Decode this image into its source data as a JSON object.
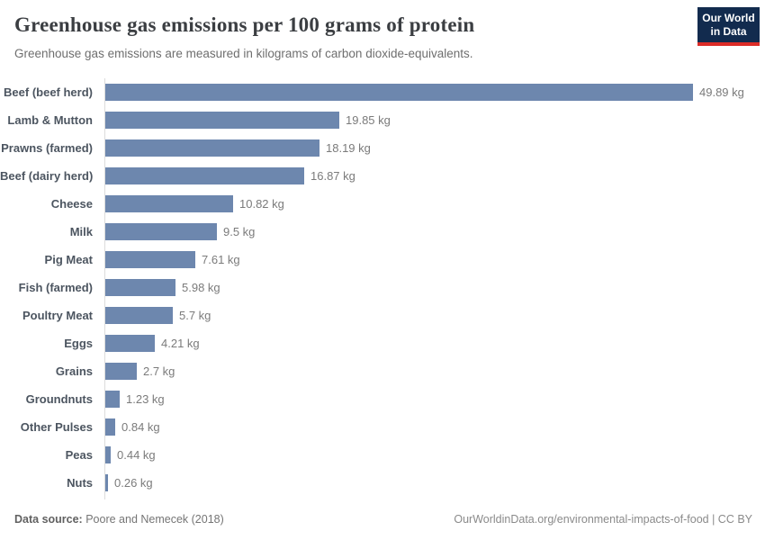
{
  "header": {
    "title": "Greenhouse gas emissions per 100 grams of protein",
    "subtitle": "Greenhouse gas emissions are measured in kilograms of carbon dioxide-equivalents.",
    "logo": {
      "line1": "Our World",
      "line2": "in Data"
    }
  },
  "chart_data": {
    "type": "bar",
    "orientation": "horizontal",
    "title": "Greenhouse gas emissions per 100 grams of protein",
    "subtitle": "Greenhouse gas emissions are measured in kilograms of carbon dioxide-equivalents.",
    "unit": "kg",
    "xlim": [
      0,
      49.89
    ],
    "grid": false,
    "categories": [
      "Beef (beef herd)",
      "Lamb & Mutton",
      "Prawns (farmed)",
      "Beef (dairy herd)",
      "Cheese",
      "Milk",
      "Pig Meat",
      "Fish (farmed)",
      "Poultry Meat",
      "Eggs",
      "Grains",
      "Groundnuts",
      "Other Pulses",
      "Peas",
      "Nuts"
    ],
    "values": [
      49.89,
      19.85,
      18.19,
      16.87,
      10.82,
      9.5,
      7.61,
      5.98,
      5.7,
      4.21,
      2.7,
      1.23,
      0.84,
      0.44,
      0.26
    ],
    "value_labels": [
      "49.89 kg",
      "19.85 kg",
      "18.19 kg",
      "16.87 kg",
      "10.82 kg",
      "9.5 kg",
      "7.61 kg",
      "5.98 kg",
      "5.7 kg",
      "4.21 kg",
      "2.7 kg",
      "1.23 kg",
      "0.84 kg",
      "0.44 kg",
      "0.26 kg"
    ],
    "bar_color": "#6d87ae"
  },
  "footer": {
    "datasource_label": "Data source:",
    "datasource_value": "Poore and Nemecek (2018)",
    "link": "OurWorldinData.org/environmental-impacts-of-food | CC BY"
  },
  "colors": {
    "bar": "#6d87ae",
    "category_label": "#4c5560",
    "value_label": "#7b7b7b",
    "axis_line": "#dcdcdc",
    "logo_bg": "#122b4e",
    "logo_underline": "#dc2c27"
  }
}
